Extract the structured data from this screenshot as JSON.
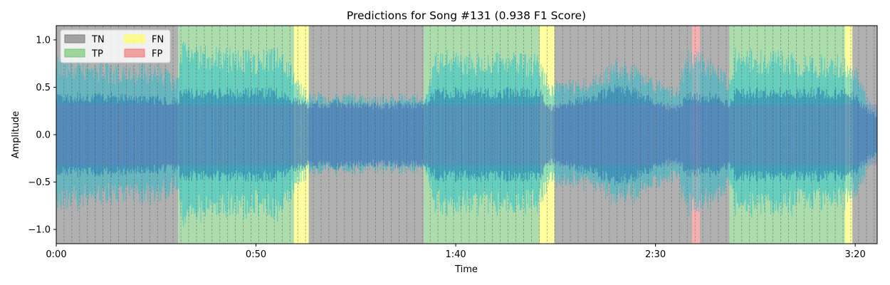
{
  "chart_data": {
    "type": "area",
    "title": "Predictions for Song #131 (0.938 F1 Score)",
    "xlabel": "Time",
    "ylabel": "Amplitude",
    "xlim_seconds": [
      0,
      205.5
    ],
    "ylim": [
      -1.15,
      1.15
    ],
    "x_ticks": [
      {
        "value": 0,
        "label": "0:00"
      },
      {
        "value": 50,
        "label": "0:50"
      },
      {
        "value": 100,
        "label": "1:40"
      },
      {
        "value": 150,
        "label": "2:30"
      },
      {
        "value": 200,
        "label": "3:20"
      }
    ],
    "y_ticks": [
      {
        "value": -1.0,
        "label": "−1.0"
      },
      {
        "value": -0.5,
        "label": "−0.5"
      },
      {
        "value": 0.0,
        "label": "0.0"
      },
      {
        "value": 0.5,
        "label": "0.5"
      },
      {
        "value": 1.0,
        "label": "1.0"
      }
    ],
    "legend": {
      "placement": "top-left",
      "columns": 2,
      "entries": [
        {
          "label": "TN",
          "color": "#808080"
        },
        {
          "label": "TP",
          "color": "#7bc87b"
        },
        {
          "label": "FN",
          "color": "#ffff66"
        },
        {
          "label": "FP",
          "color": "#f08080"
        }
      ]
    },
    "colors": {
      "TN": "#808080",
      "TP": "#7bc87b",
      "FN": "#ffff66",
      "FP": "#f08080",
      "waveform_primary": "#1f77b4",
      "waveform_secondary": "#17becf",
      "waveform_overlay": "#9467bd"
    },
    "segment_length_seconds": 1.95,
    "segments": [
      {
        "label": "TN",
        "start": 0.0,
        "end": 30.5
      },
      {
        "label": "TP",
        "start": 30.5,
        "end": 59.5
      },
      {
        "label": "FN",
        "start": 59.5,
        "end": 63.2
      },
      {
        "label": "TN",
        "start": 63.2,
        "end": 92.0
      },
      {
        "label": "TP",
        "start": 92.0,
        "end": 121.0
      },
      {
        "label": "FN",
        "start": 121.0,
        "end": 124.7
      },
      {
        "label": "TN",
        "start": 124.7,
        "end": 159.2
      },
      {
        "label": "FP",
        "start": 159.2,
        "end": 161.1
      },
      {
        "label": "TN",
        "start": 161.1,
        "end": 168.5
      },
      {
        "label": "TP",
        "start": 168.5,
        "end": 197.4
      },
      {
        "label": "FN",
        "start": 197.4,
        "end": 199.3
      },
      {
        "label": "TN",
        "start": 199.3,
        "end": 205.5
      }
    ],
    "waveform_envelope": {
      "time": [
        0,
        5,
        10,
        15,
        20,
        25,
        30.5,
        31,
        35,
        40,
        45,
        50,
        55,
        59.5,
        63,
        70,
        80,
        90,
        92,
        95,
        100,
        110,
        121,
        124,
        126,
        130,
        135,
        140,
        145,
        150,
        155,
        158,
        162,
        165,
        168.5,
        170,
        180,
        190,
        197,
        200,
        203,
        205.5
      ],
      "outer": [
        0.85,
        0.83,
        0.8,
        0.75,
        0.75,
        0.78,
        0.6,
        1.0,
        0.98,
        0.95,
        0.92,
        0.9,
        0.95,
        0.7,
        0.45,
        0.45,
        0.42,
        0.45,
        0.4,
        0.92,
        0.9,
        0.88,
        0.85,
        0.55,
        0.6,
        0.58,
        0.65,
        0.8,
        0.75,
        0.6,
        0.5,
        0.9,
        0.88,
        0.8,
        0.6,
        0.92,
        0.9,
        0.85,
        0.85,
        0.8,
        0.4,
        0.3
      ],
      "inner": [
        0.45,
        0.45,
        0.45,
        0.45,
        0.42,
        0.42,
        0.4,
        0.5,
        0.5,
        0.5,
        0.5,
        0.5,
        0.5,
        0.4,
        0.35,
        0.38,
        0.35,
        0.36,
        0.35,
        0.5,
        0.5,
        0.5,
        0.5,
        0.3,
        0.35,
        0.4,
        0.45,
        0.55,
        0.5,
        0.4,
        0.3,
        0.45,
        0.45,
        0.45,
        0.35,
        0.5,
        0.5,
        0.5,
        0.5,
        0.45,
        0.3,
        0.2
      ]
    }
  }
}
